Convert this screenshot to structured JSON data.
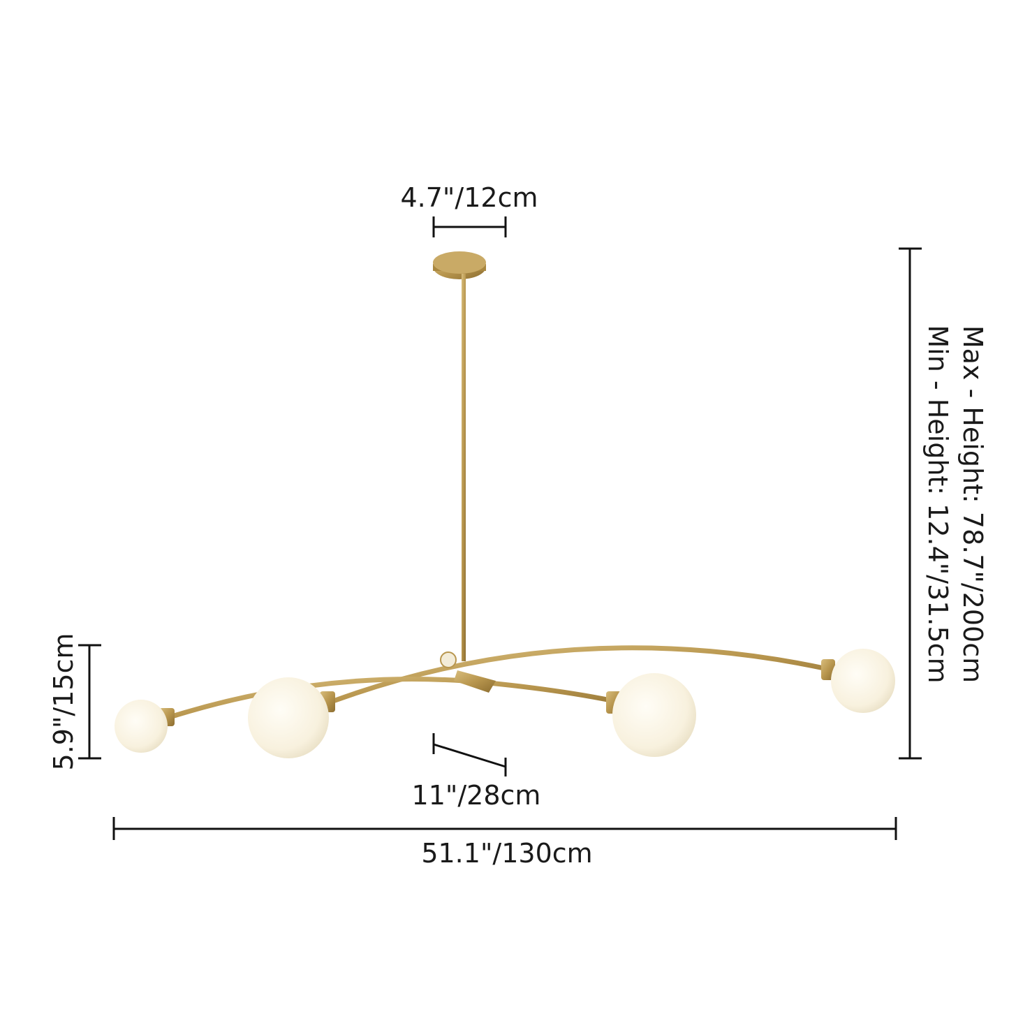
{
  "dimensions": {
    "canopy_width": "4.7\"/12cm",
    "max_height": "Max - Height: 78.7\"/200cm",
    "min_height": "Min - Height: 12.4\"/31.5cm",
    "shade_height": "5.9\"/15cm",
    "arm_depth": "11\"/28cm",
    "total_width": "51.1\"/130cm"
  },
  "colors": {
    "brass": "#b8964e",
    "globe": "#fbf7ec",
    "line": "#111111"
  }
}
